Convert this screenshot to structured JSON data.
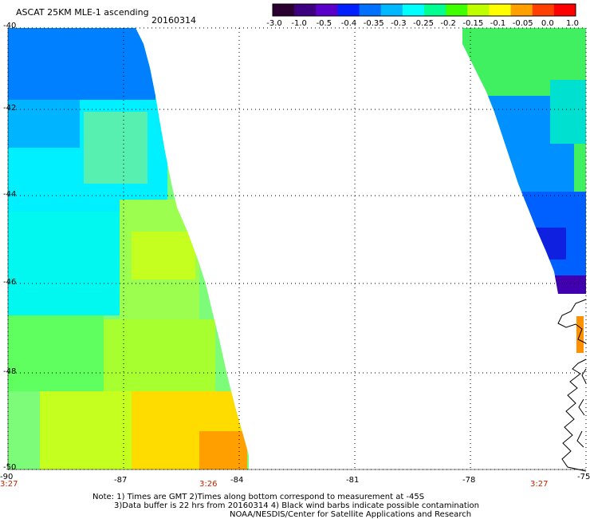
{
  "header": {
    "title": "ASCAT 25KM MLE-1 ascending",
    "date": "20160314"
  },
  "colorbar": {
    "ticks": [
      "-3.0",
      "-1.0",
      "-0.5",
      "-0.4",
      "-0.35",
      "-0.3",
      "-0.25",
      "-0.2",
      "-0.15",
      "-0.1",
      "-0.05",
      "0.0",
      "1.0"
    ],
    "colors": [
      "#2a0030",
      "#3c0080",
      "#5a00c8",
      "#0020ff",
      "#0070ff",
      "#00b8ff",
      "#00ffff",
      "#00ff90",
      "#40ff00",
      "#c0ff00",
      "#ffff00",
      "#ffa000",
      "#ff4000",
      "#ff0000"
    ]
  },
  "axes": {
    "lat_labels": [
      "-40",
      "-42",
      "-44",
      "-46",
      "-48",
      "-50"
    ],
    "lon_labels": [
      "-90",
      "-87",
      "-84",
      "-81",
      "-78",
      "-75"
    ]
  },
  "times": [
    "3:27",
    "3:26",
    "3:27"
  ],
  "notes": {
    "line1": "Note: 1) Times are GMT 2)Times along bottom correspond to measurement at -45S",
    "line2": "3)Data buffer is 22 hrs from 20160314 4) Black wind barbs indicate possible contamination",
    "line3": "NOAA/NESDIS/Center for Satellite Applications and Research"
  }
}
